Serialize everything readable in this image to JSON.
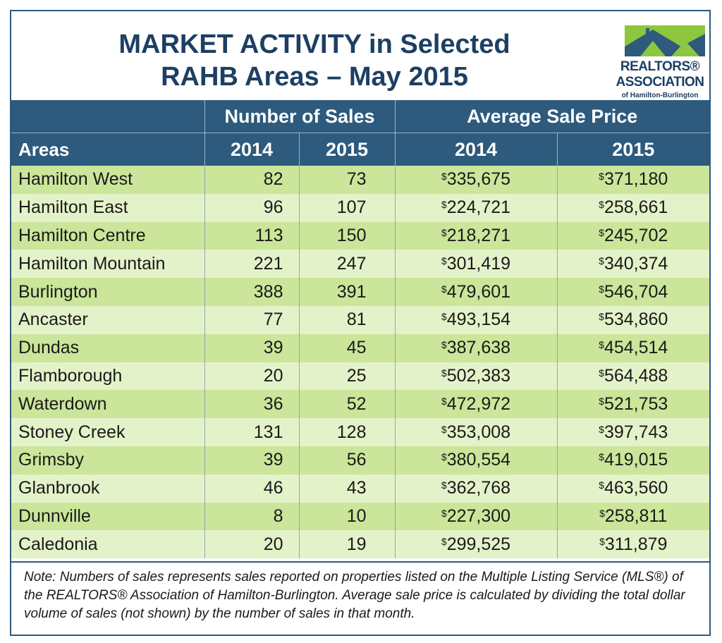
{
  "title_line1": "MARKET ACTIVITY in Selected",
  "title_line2": "RAHB Areas – May 2015",
  "logo": {
    "line1": "REALTORS®",
    "line2": "ASSOCIATION",
    "line3": "of Hamilton-Burlington",
    "colors": {
      "green": "#8dc63f",
      "blue": "#2d5a7d"
    }
  },
  "header": {
    "group_sales": "Number of Sales",
    "group_price": "Average Sale Price",
    "areas": "Areas",
    "y2014": "2014",
    "y2015": "2015"
  },
  "currency_symbol": "$",
  "rows": [
    {
      "area": "Hamilton West",
      "sales_2014": "82",
      "sales_2015": "73",
      "price_2014": "335,675",
      "price_2015": "371,180"
    },
    {
      "area": "Hamilton East",
      "sales_2014": "96",
      "sales_2015": "107",
      "price_2014": "224,721",
      "price_2015": "258,661"
    },
    {
      "area": "Hamilton Centre",
      "sales_2014": "113",
      "sales_2015": "150",
      "price_2014": "218,271",
      "price_2015": "245,702"
    },
    {
      "area": "Hamilton Mountain",
      "sales_2014": "221",
      "sales_2015": "247",
      "price_2014": "301,419",
      "price_2015": "340,374"
    },
    {
      "area": "Burlington",
      "sales_2014": "388",
      "sales_2015": "391",
      "price_2014": "479,601",
      "price_2015": "546,704"
    },
    {
      "area": "Ancaster",
      "sales_2014": "77",
      "sales_2015": "81",
      "price_2014": "493,154",
      "price_2015": "534,860"
    },
    {
      "area": "Dundas",
      "sales_2014": "39",
      "sales_2015": "45",
      "price_2014": "387,638",
      "price_2015": "454,514"
    },
    {
      "area": "Flamborough",
      "sales_2014": "20",
      "sales_2015": "25",
      "price_2014": "502,383",
      "price_2015": "564,488"
    },
    {
      "area": "Waterdown",
      "sales_2014": "36",
      "sales_2015": "52",
      "price_2014": "472,972",
      "price_2015": "521,753"
    },
    {
      "area": "Stoney Creek",
      "sales_2014": "131",
      "sales_2015": "128",
      "price_2014": "353,008",
      "price_2015": "397,743"
    },
    {
      "area": "Grimsby",
      "sales_2014": "39",
      "sales_2015": "56",
      "price_2014": "380,554",
      "price_2015": "419,015"
    },
    {
      "area": "Glanbrook",
      "sales_2014": "46",
      "sales_2015": "43",
      "price_2014": "362,768",
      "price_2015": "463,560"
    },
    {
      "area": "Dunnville",
      "sales_2014": "8",
      "sales_2015": "10",
      "price_2014": "227,300",
      "price_2015": "258,811"
    },
    {
      "area": "Caledonia",
      "sales_2014": "20",
      "sales_2015": "19",
      "price_2014": "299,525",
      "price_2015": "311,879"
    }
  ],
  "note": "Note:  Numbers of sales represents sales reported on properties listed on the Multiple Listing Service (MLS®) of the REALTORS® Association of Hamilton-Burlington.  Average sale price is calculated by dividing the total dollar volume of sales (not shown) by the number of sales in that month.",
  "colors": {
    "header_bg": "#2d5a7d",
    "row_dark": "#cbe59a",
    "row_light": "#e4f2c9",
    "title": "#1d3f63"
  }
}
